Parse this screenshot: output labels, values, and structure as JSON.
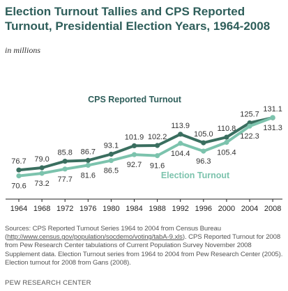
{
  "header": {
    "title_line1": "Election Turnout Tallies and CPS Reported",
    "title_line2": "Turnout, Presidential Election Years, 1964-2008",
    "unit": "in millions"
  },
  "chart_data": {
    "type": "line",
    "x": [
      "1964",
      "1968",
      "1972",
      "1976",
      "1980",
      "1984",
      "1988",
      "1992",
      "1996",
      "2000",
      "2004",
      "2008"
    ],
    "series": [
      {
        "name": "CPS Reported Turnout",
        "values": [
          76.7,
          79.0,
          85.8,
          86.7,
          93.1,
          101.9,
          102.2,
          113.9,
          105.0,
          110.8,
          125.7,
          131.1
        ],
        "color": "#3a6e5f"
      },
      {
        "name": "Election Turnout",
        "values": [
          70.6,
          73.2,
          77.7,
          81.6,
          86.5,
          92.7,
          91.6,
          104.4,
          96.3,
          105.4,
          122.3,
          131.3
        ],
        "color": "#7cc3ad"
      }
    ],
    "ylim": [
      60,
      140
    ],
    "grid": false
  },
  "footer": {
    "source_prefix": "Sources: CPS  Reported Turnout Series 1964 to 2004 from  Census Bureau (",
    "source_link": "http://www.census.gov/population/socdemo/voting/tabA-9.xls",
    "source_rest": "). CPS Reported Turnout for 2008 from  Pew Research Center tabulations of Current Population Survey November 2008 Supplement data. Election Turnout series from 1964 to 2004 from Pew Research Center (2005).  Election turnout for 2008 from Gans (2008).",
    "credit": "PEW RESEARCH  CENTER"
  }
}
